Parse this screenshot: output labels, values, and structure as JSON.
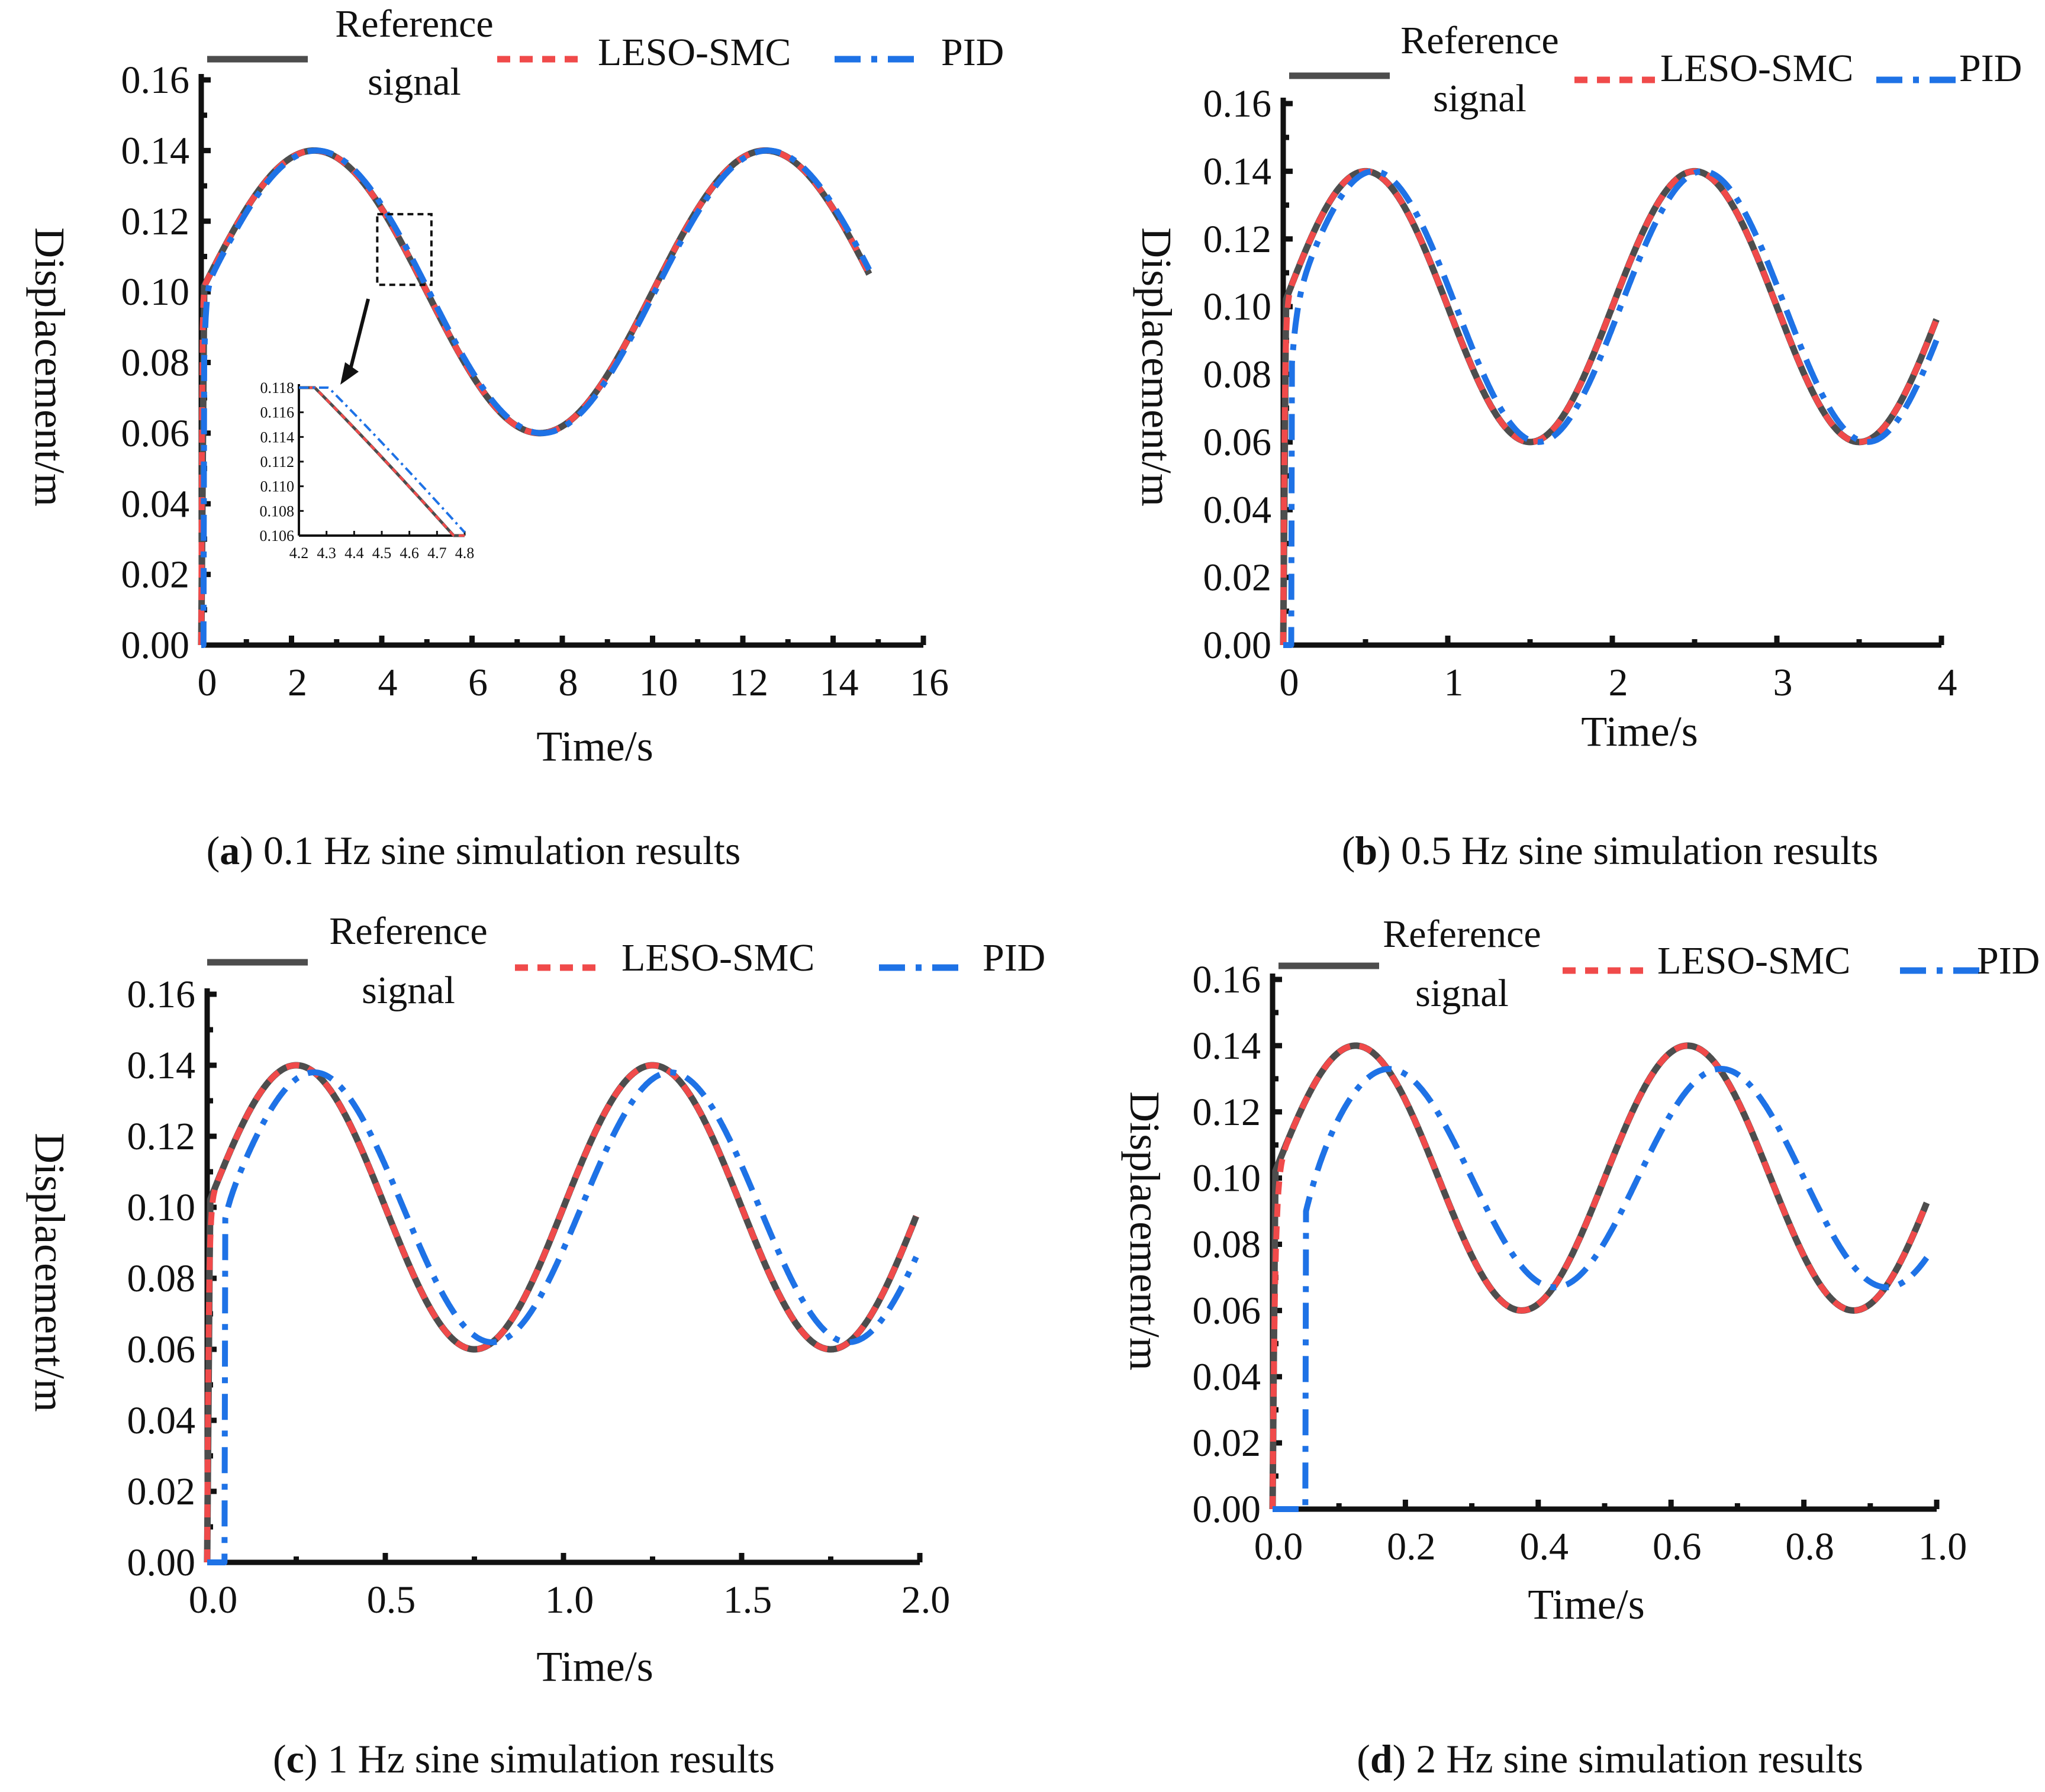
{
  "colors": {
    "reference": "#4d4d4d",
    "leso_smc": "#f04a4a",
    "pid": "#1e72e6",
    "axis": "#111111"
  },
  "legend": {
    "reference_line1": "Reference",
    "reference_line2": "signal",
    "leso_smc": "LESO-SMC",
    "pid": "PID"
  },
  "chart_data": [
    {
      "panel": "a",
      "type": "line",
      "title": "",
      "caption_letter": "a",
      "caption_text": " 0.1 Hz sine simulation results",
      "xlabel": "Time/s",
      "ylabel": "Displacement/m",
      "frequency_hz": 0.1,
      "xlim": [
        0,
        16
      ],
      "ylim": [
        0,
        0.16
      ],
      "x_end": 14.8,
      "xticks": [
        0,
        2,
        4,
        6,
        8,
        10,
        12,
        14,
        16
      ],
      "xtick_labels": [
        "0",
        "2",
        "4",
        "6",
        "8",
        "10",
        "12",
        "14",
        "16"
      ],
      "yticks": [
        0,
        0.02,
        0.04,
        0.06,
        0.08,
        0.1,
        0.12,
        0.14,
        0.16
      ],
      "ytick_labels": [
        "0.00",
        "0.02",
        "0.04",
        "0.06",
        "0.08",
        "0.10",
        "0.12",
        "0.14",
        "0.16"
      ],
      "series": [
        {
          "name": "Reference signal",
          "model": "0.1 + 0.04 sin(2π·0.1·t)"
        },
        {
          "name": "LESO-SMC",
          "model": "tracks reference, rise time ≈ 0.04 s"
        },
        {
          "name": "PID",
          "model": "rise time ≈ 0.1 s, phase lag ≈ 0.05 s"
        }
      ],
      "inset": {
        "xlim": [
          4.2,
          4.8
        ],
        "ylim": [
          0.106,
          0.118
        ],
        "xtick_labels": [
          "4.2",
          "4.3",
          "4.4",
          "4.5",
          "4.6",
          "4.7",
          "4.8"
        ],
        "ytick_labels": [
          "0.106",
          "0.108",
          "0.110",
          "0.112",
          "0.114",
          "0.116",
          "0.118"
        ]
      }
    },
    {
      "panel": "b",
      "type": "line",
      "caption_letter": "b",
      "caption_text": " 0.5 Hz sine simulation results",
      "xlabel": "Time/s",
      "ylabel": "Displacement/m",
      "frequency_hz": 0.5,
      "xlim": [
        0,
        4
      ],
      "ylim": [
        0,
        0.16
      ],
      "x_end": 3.97,
      "xticks": [
        0,
        1,
        2,
        3,
        4
      ],
      "xtick_labels": [
        "0",
        "1",
        "2",
        "3",
        "4"
      ],
      "yticks": [
        0,
        0.02,
        0.04,
        0.06,
        0.08,
        0.1,
        0.12,
        0.14,
        0.16
      ],
      "ytick_labels": [
        "0.00",
        "0.02",
        "0.04",
        "0.06",
        "0.08",
        "0.10",
        "0.12",
        "0.14",
        "0.16"
      ],
      "series": [
        {
          "name": "Reference signal",
          "model": "0.1 + 0.04 sin(2π·0.5·t)"
        },
        {
          "name": "LESO-SMC",
          "model": "tracks reference, rise time ≈ 0.03 s"
        },
        {
          "name": "PID",
          "model": "rise time ≈ 0.1 s, phase lag ≈ 0.05 s"
        }
      ]
    },
    {
      "panel": "c",
      "type": "line",
      "caption_letter": "c",
      "caption_text": " 1 Hz sine simulation results",
      "xlabel": "Time/s",
      "ylabel": "Displacement/m",
      "frequency_hz": 1,
      "xlim": [
        0,
        2
      ],
      "ylim": [
        0,
        0.16
      ],
      "x_end": 1.99,
      "xticks": [
        0,
        0.5,
        1,
        1.5,
        2
      ],
      "xtick_labels": [
        "0.0",
        "0.5",
        "1.0",
        "1.5",
        "2.0"
      ],
      "yticks": [
        0,
        0.02,
        0.04,
        0.06,
        0.08,
        0.1,
        0.12,
        0.14,
        0.16
      ],
      "ytick_labels": [
        "0.00",
        "0.02",
        "0.04",
        "0.06",
        "0.08",
        "0.10",
        "0.12",
        "0.14",
        "0.16"
      ],
      "series": [
        {
          "name": "Reference signal",
          "model": "0.1 + 0.04 sin(2π·1·t)"
        },
        {
          "name": "LESO-SMC",
          "model": "tracks reference, rise time ≈ 0.015 s"
        },
        {
          "name": "PID",
          "model": "rise time ≈ 0.05 s, phase lag ≈ 0.05 s, amplitude ≈ 0.038"
        }
      ]
    },
    {
      "panel": "d",
      "type": "line",
      "caption_letter": "d",
      "caption_text": " 2 Hz sine simulation results",
      "xlabel": "Time/s",
      "ylabel": "Displacement/m",
      "frequency_hz": 2,
      "xlim": [
        0,
        1
      ],
      "ylim": [
        0,
        0.16
      ],
      "x_end": 0.985,
      "xticks": [
        0,
        0.2,
        0.4,
        0.6,
        0.8,
        1
      ],
      "xtick_labels": [
        "0.0",
        "0.2",
        "0.4",
        "0.6",
        "0.8",
        "1.0"
      ],
      "yticks": [
        0,
        0.02,
        0.04,
        0.06,
        0.08,
        0.1,
        0.12,
        0.14,
        0.16
      ],
      "ytick_labels": [
        "0.00",
        "0.02",
        "0.04",
        "0.06",
        "0.08",
        "0.10",
        "0.12",
        "0.14",
        "0.16"
      ],
      "series": [
        {
          "name": "Reference signal",
          "model": "0.1 + 0.04 sin(2π·2·t)"
        },
        {
          "name": "LESO-SMC",
          "model": "tracks reference, rise time ≈ 0.01 s"
        },
        {
          "name": "PID",
          "model": "rise time ≈ 0.04 s, phase lag ≈ 0.05 s, amplitude ≈ 0.033"
        }
      ]
    }
  ]
}
